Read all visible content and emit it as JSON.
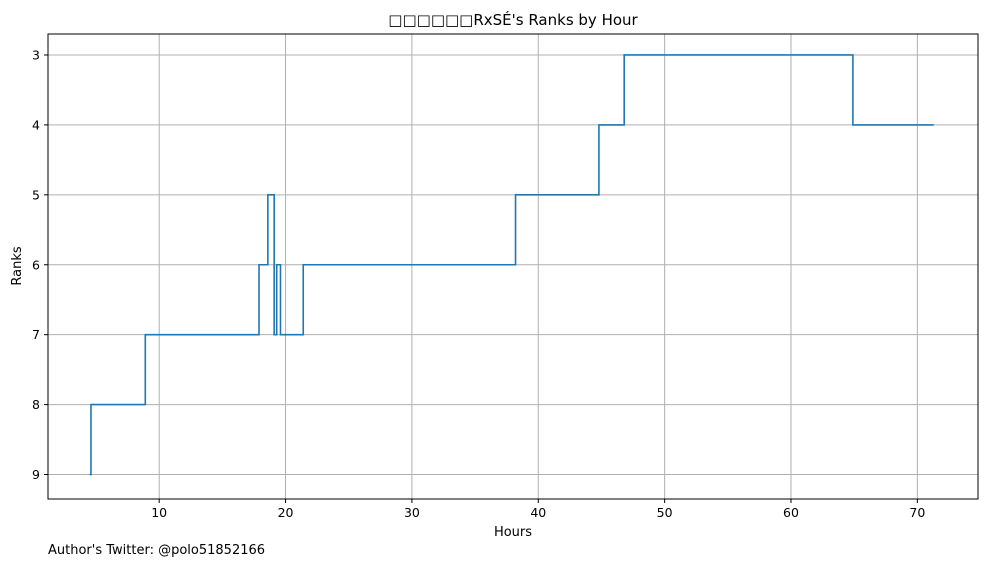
{
  "chart_data": {
    "type": "line",
    "drawstyle": "step-post",
    "title": "□□□□□□RxSÉ's Ranks by Hour",
    "xlabel": "Hours",
    "ylabel": "Ranks",
    "xlim": [
      1.2,
      74.8
    ],
    "ylim": [
      9.35,
      2.7
    ],
    "y_inverted": true,
    "xticks": [
      10,
      20,
      30,
      40,
      50,
      60,
      70
    ],
    "yticks": [
      3,
      4,
      5,
      6,
      7,
      8,
      9
    ],
    "grid": true,
    "line_color": "#1f77b4",
    "series": [
      {
        "x": [
          4.5,
          4.6,
          8.9,
          17.9,
          18.6,
          19.1,
          19.3,
          19.6,
          21.4,
          38.2,
          44.8,
          46.8,
          64.9,
          71.3
        ],
        "y": [
          9,
          8,
          7,
          6,
          5,
          7,
          6,
          7,
          6,
          5,
          4,
          3,
          4,
          4
        ]
      }
    ]
  },
  "footer": {
    "attribution": "Author's Twitter: @polo51852166"
  }
}
